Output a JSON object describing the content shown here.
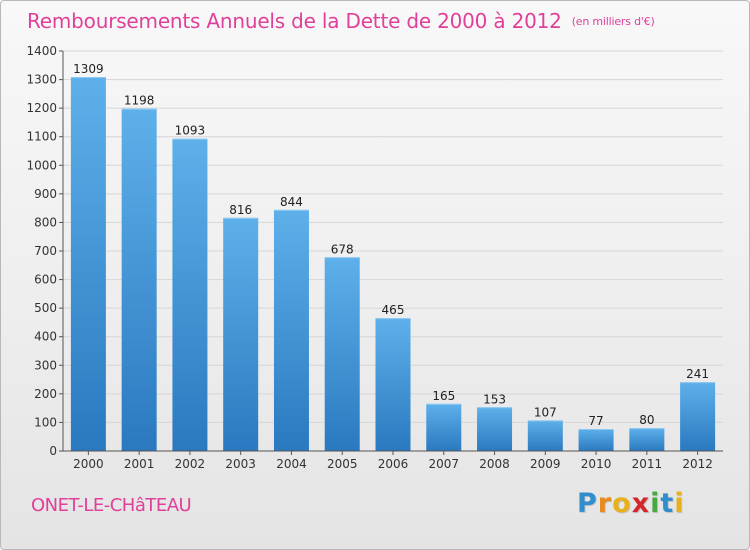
{
  "title": "Remboursements Annuels de la Dette de 2000 à 2012",
  "unit_note": "(en milliers d'€)",
  "commune": "ONET-LE-CHâTEAU",
  "logo": {
    "letters": [
      "P",
      "r",
      "o",
      "x",
      "i",
      "t",
      "i"
    ],
    "colors": [
      "#2f8ecb",
      "#e88a1e",
      "#e6b11c",
      "#d6262b",
      "#49a843",
      "#2f8ecb",
      "#e6b11c"
    ]
  },
  "colors": {
    "bar_top": "#5eb0ea",
    "bar_bottom": "#2a79c0",
    "title": "#e0409a"
  },
  "chart_data": {
    "type": "bar",
    "title": "Remboursements Annuels de la Dette de 2000 à 2012",
    "categories": [
      "2000",
      "2001",
      "2002",
      "2003",
      "2004",
      "2005",
      "2006",
      "2007",
      "2008",
      "2009",
      "2010",
      "2011",
      "2012"
    ],
    "values": [
      1309,
      1198,
      1093,
      816,
      844,
      678,
      465,
      165,
      153,
      107,
      77,
      80,
      241
    ],
    "ylim": [
      0,
      1400
    ],
    "yticks": [
      0,
      100,
      200,
      300,
      400,
      500,
      600,
      700,
      800,
      900,
      1000,
      1100,
      1200,
      1300,
      1400
    ],
    "grid": true,
    "xlabel": "",
    "ylabel": ""
  }
}
